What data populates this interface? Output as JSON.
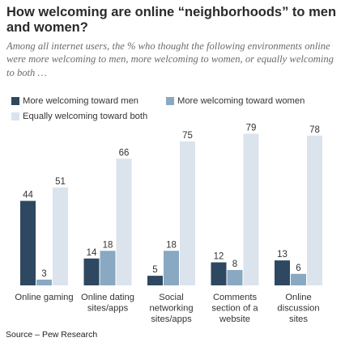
{
  "title": "How welcoming are online “neighborhoods” to men and women?",
  "subtitle": "Among all internet users, the % who thought the following environments online were more welcoming to men, more welcoming to women, or equally welcoming to both …",
  "source": "Source – Pew Research",
  "colors": {
    "men": "#2d4860",
    "women": "#89a8c1",
    "both": "#dbe4ec"
  },
  "chart_data": {
    "type": "bar",
    "categories": [
      [
        "Online gaming"
      ],
      [
        "Online dating",
        "sites/apps"
      ],
      [
        "Social",
        "networking",
        "sites/apps"
      ],
      [
        "Comments",
        "section of a",
        "website"
      ],
      [
        "Online",
        "discussion",
        "sites"
      ]
    ],
    "series": [
      {
        "name": "More welcoming toward men",
        "values": [
          44,
          14,
          5,
          12,
          13
        ]
      },
      {
        "name": "More welcoming toward women",
        "values": [
          3,
          18,
          18,
          8,
          6
        ]
      },
      {
        "name": "Equally welcoming toward both",
        "values": [
          51,
          66,
          75,
          79,
          78
        ]
      }
    ],
    "ylim": [
      0,
      80
    ],
    "legend_position": "top-left",
    "grid": false
  }
}
